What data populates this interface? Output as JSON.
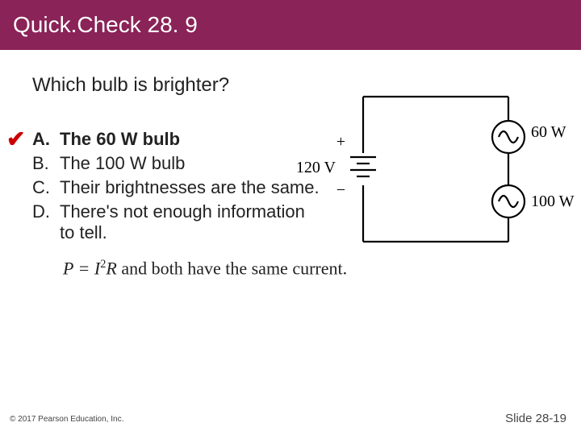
{
  "title": "Quick.Check 28. 9",
  "question": "Which bulb is brighter?",
  "answers": [
    {
      "letter": "A.",
      "text": "The 60 W bulb",
      "bold": true,
      "correct": true
    },
    {
      "letter": "B.",
      "text": "The 100 W bulb",
      "bold": false,
      "correct": false
    },
    {
      "letter": "C.",
      "text": "Their brightnesses are the same.",
      "bold": false,
      "correct": false
    },
    {
      "letter": "D.",
      "text": "There's not enough information to tell.",
      "bold": false,
      "correct": false
    }
  ],
  "hint_prefix": "P = I",
  "hint_sup": "2",
  "hint_mid": "R",
  "hint_rest": " and both have the same current.",
  "copyright": "© 2017 Pearson Education, Inc.",
  "slidenum": "Slide 28-19",
  "diagram": {
    "voltage_label": "120 V",
    "plus": "+",
    "minus": "−",
    "bulb_top": "60 W",
    "bulb_bottom": "100 W",
    "stroke": "#000000",
    "stroke_width": 2.2
  }
}
